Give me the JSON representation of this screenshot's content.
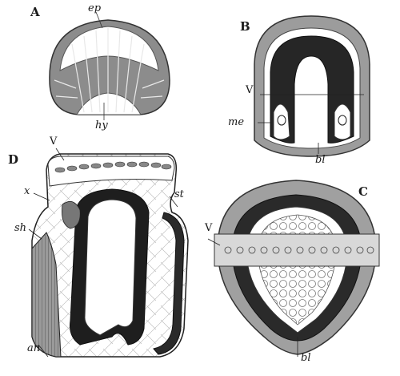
{
  "figures": {
    "A": {
      "letter": "A",
      "labels": {
        "ep": "ep",
        "hy": "hy"
      }
    },
    "B": {
      "letter": "B",
      "labels": {
        "V": "V",
        "me": "me",
        "bl": "bl"
      }
    },
    "C": {
      "letter": "C",
      "labels": {
        "V": "V",
        "bl": "bl"
      }
    },
    "D": {
      "letter": "D",
      "labels": {
        "V": "V",
        "x": "x",
        "sh": "sh",
        "st": "st",
        "an": "an"
      }
    }
  },
  "colors": {
    "ink": "#1a1a1a",
    "paper": "#ffffff",
    "mid": "#8a8a8a",
    "light": "#c9c9c9"
  }
}
